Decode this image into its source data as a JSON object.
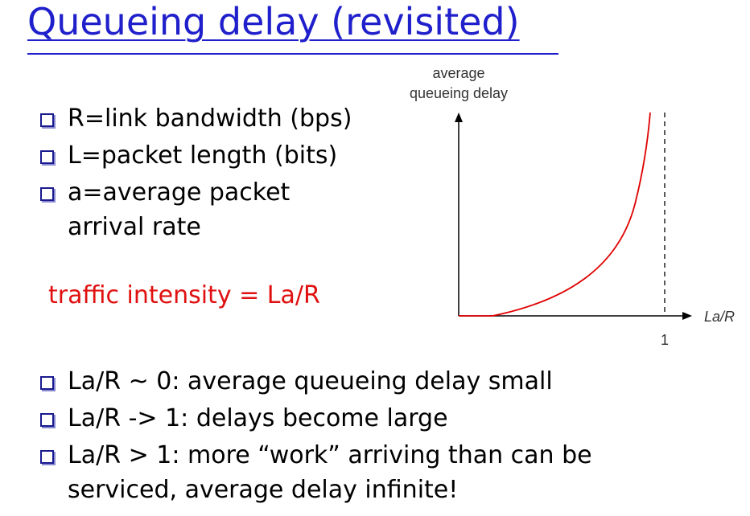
{
  "slide": {
    "title": "Queueing delay (revisited)",
    "top_bullets": [
      "R=link bandwidth (bps)",
      "L=packet length (bits)",
      "a=average packet",
      "arrival rate"
    ],
    "traffic_intensity": "traffic intensity = La/R",
    "bottom_bullets": [
      "La/R ~ 0: average queueing delay small",
      "La/R -> 1: delays become large",
      "La/R > 1: more “work” arriving than can be",
      "serviced, average delay infinite!"
    ]
  },
  "graph": {
    "ylabel_line1": "average",
    "ylabel_line2": "queueing delay",
    "xlabel": "La/R",
    "asymptote_label": "1",
    "curve_color": "#e00000",
    "axis_color": "#000000"
  }
}
